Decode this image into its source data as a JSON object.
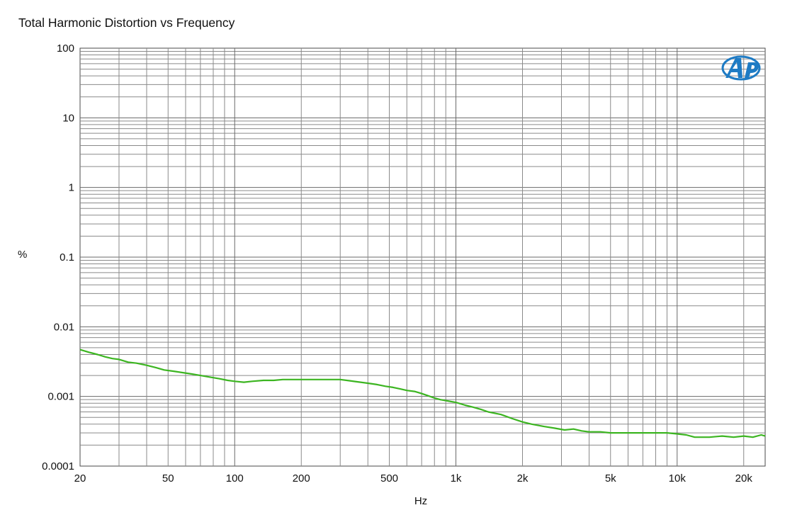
{
  "chart_data": {
    "type": "line",
    "title": "Total Harmonic Distortion vs Frequency",
    "xlabel": "Hz",
    "ylabel": "%",
    "x_scale": "log",
    "y_scale": "log",
    "xlim": [
      20,
      25000
    ],
    "ylim": [
      0.0001,
      100
    ],
    "grid": true,
    "x_ticks": [
      {
        "value": 20,
        "label": "20"
      },
      {
        "value": 50,
        "label": "50"
      },
      {
        "value": 100,
        "label": "100"
      },
      {
        "value": 200,
        "label": "200"
      },
      {
        "value": 500,
        "label": "500"
      },
      {
        "value": 1000,
        "label": "1k"
      },
      {
        "value": 2000,
        "label": "2k"
      },
      {
        "value": 5000,
        "label": "5k"
      },
      {
        "value": 10000,
        "label": "10k"
      },
      {
        "value": 20000,
        "label": "20k"
      }
    ],
    "y_ticks": [
      {
        "value": 100,
        "label": "100"
      },
      {
        "value": 10,
        "label": "10"
      },
      {
        "value": 1,
        "label": "1"
      },
      {
        "value": 0.1,
        "label": "0.1"
      },
      {
        "value": 0.01,
        "label": "0.01"
      },
      {
        "value": 0.001,
        "label": "0.001"
      },
      {
        "value": 0.0001,
        "label": "0.0001"
      }
    ],
    "series": [
      {
        "color": "#3cb521",
        "x": [
          20,
          22,
          24,
          26,
          28,
          30,
          33,
          36,
          40,
          44,
          48,
          53,
          58,
          64,
          70,
          77,
          85,
          93,
          100,
          110,
          120,
          135,
          150,
          165,
          180,
          200,
          230,
          260,
          300,
          330,
          360,
          400,
          440,
          480,
          520,
          560,
          600,
          650,
          700,
          750,
          800,
          850,
          900,
          1000,
          1100,
          1200,
          1300,
          1400,
          1600,
          1800,
          2000,
          2200,
          2500,
          2800,
          3100,
          3400,
          3700,
          4000,
          4500,
          5000,
          5500,
          6000,
          7000,
          8000,
          9000,
          10000,
          11000,
          12000,
          14000,
          16000,
          18000,
          20000,
          22000,
          24000,
          25000
        ],
        "y": [
          0.0047,
          0.0043,
          0.004,
          0.0037,
          0.0035,
          0.0034,
          0.0031,
          0.003,
          0.0028,
          0.0026,
          0.0024,
          0.0023,
          0.0022,
          0.0021,
          0.002,
          0.0019,
          0.0018,
          0.0017,
          0.00165,
          0.0016,
          0.00165,
          0.0017,
          0.0017,
          0.00175,
          0.00175,
          0.00175,
          0.00175,
          0.00175,
          0.00175,
          0.00168,
          0.00162,
          0.00155,
          0.00148,
          0.0014,
          0.00135,
          0.00128,
          0.00122,
          0.00118,
          0.0011,
          0.00102,
          0.00095,
          0.0009,
          0.00087,
          0.00082,
          0.00075,
          0.0007,
          0.00065,
          0.0006,
          0.00055,
          0.00048,
          0.00043,
          0.0004,
          0.00037,
          0.00035,
          0.00033,
          0.00034,
          0.00032,
          0.00031,
          0.00031,
          0.0003,
          0.0003,
          0.0003,
          0.0003,
          0.0003,
          0.0003,
          0.00029,
          0.00028,
          0.00026,
          0.00026,
          0.00027,
          0.00026,
          0.00027,
          0.00026,
          0.00028,
          0.00027
        ]
      }
    ]
  }
}
